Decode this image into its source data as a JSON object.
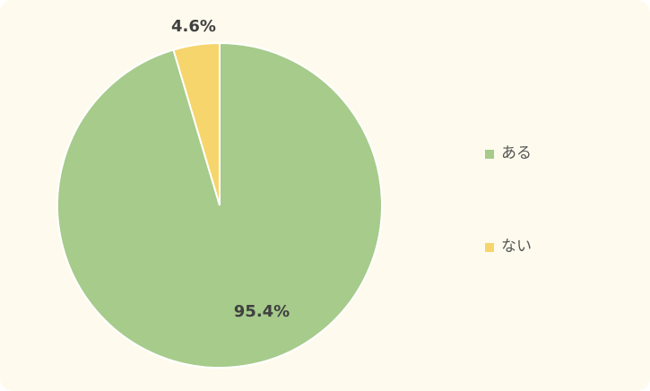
{
  "chart_data": {
    "type": "pie",
    "categories": [
      "ある",
      "ない"
    ],
    "values": [
      95.4,
      4.6
    ],
    "data_labels": [
      "95.4%",
      "4.6%"
    ],
    "colors": [
      "#a6cb8b",
      "#f7d56d"
    ],
    "start_angle_deg": 0,
    "direction": "clockwise",
    "legend": "right"
  }
}
